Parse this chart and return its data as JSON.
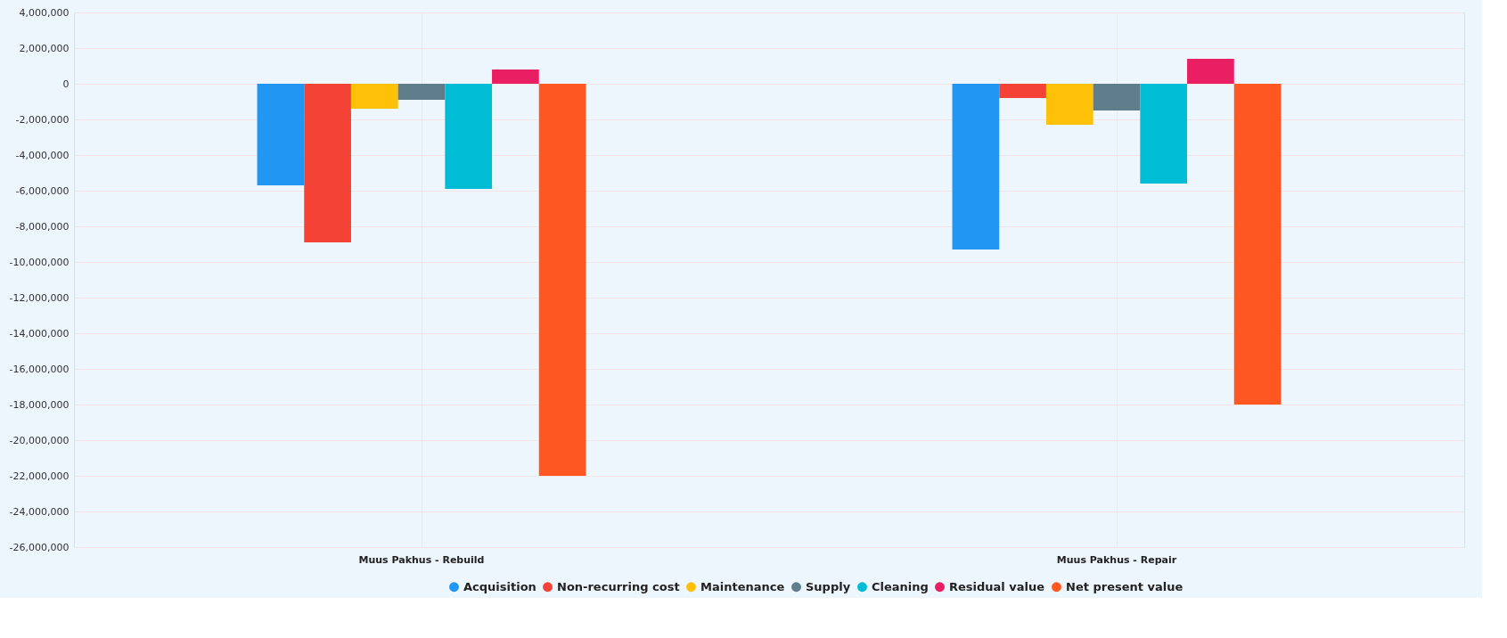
{
  "chart_data": {
    "type": "bar",
    "categories": [
      "Muus Pakhus - Rebuild",
      "Muus Pakhus - Repair"
    ],
    "series": [
      {
        "name": "Acquisition",
        "color": "#2196f3",
        "values": [
          -5700000,
          -9300000
        ]
      },
      {
        "name": "Non-recurring cost",
        "color": "#f44336",
        "values": [
          -8900000,
          -800000
        ]
      },
      {
        "name": "Maintenance",
        "color": "#ffc107",
        "values": [
          -1400000,
          -2300000
        ]
      },
      {
        "name": "Supply",
        "color": "#607d8b",
        "values": [
          -900000,
          -1500000
        ]
      },
      {
        "name": "Cleaning",
        "color": "#00bcd4",
        "values": [
          -5900000,
          -5600000
        ]
      },
      {
        "name": "Residual value",
        "color": "#e91e63",
        "values": [
          800000,
          1400000
        ]
      },
      {
        "name": "Net present value",
        "color": "#ff5722",
        "values": [
          -22000000,
          -18000000
        ]
      }
    ],
    "ylim": [
      -26000000,
      4000000
    ],
    "yticks": [
      {
        "value": -26000000,
        "label": "-26,000,000"
      },
      {
        "value": -24000000,
        "label": "-24,000,000"
      },
      {
        "value": -22000000,
        "label": "-22,000,000"
      },
      {
        "value": -20000000,
        "label": "-20,000,000"
      },
      {
        "value": -18000000,
        "label": "-18,000,000"
      },
      {
        "value": -16000000,
        "label": "-16,000,000"
      },
      {
        "value": -14000000,
        "label": "-14,000,000"
      },
      {
        "value": -12000000,
        "label": "-12,000,000"
      },
      {
        "value": -10000000,
        "label": "-10,000,000"
      },
      {
        "value": -8000000,
        "label": "-8,000,000"
      },
      {
        "value": -6000000,
        "label": "-6,000,000"
      },
      {
        "value": -4000000,
        "label": "-4,000,000"
      },
      {
        "value": -2000000,
        "label": "-2,000,000"
      },
      0,
      {
        "value": 2000000,
        "label": "2,000,000"
      },
      {
        "value": 4000000,
        "label": "4,000,000"
      }
    ],
    "grid": true,
    "legend": "bottom"
  }
}
